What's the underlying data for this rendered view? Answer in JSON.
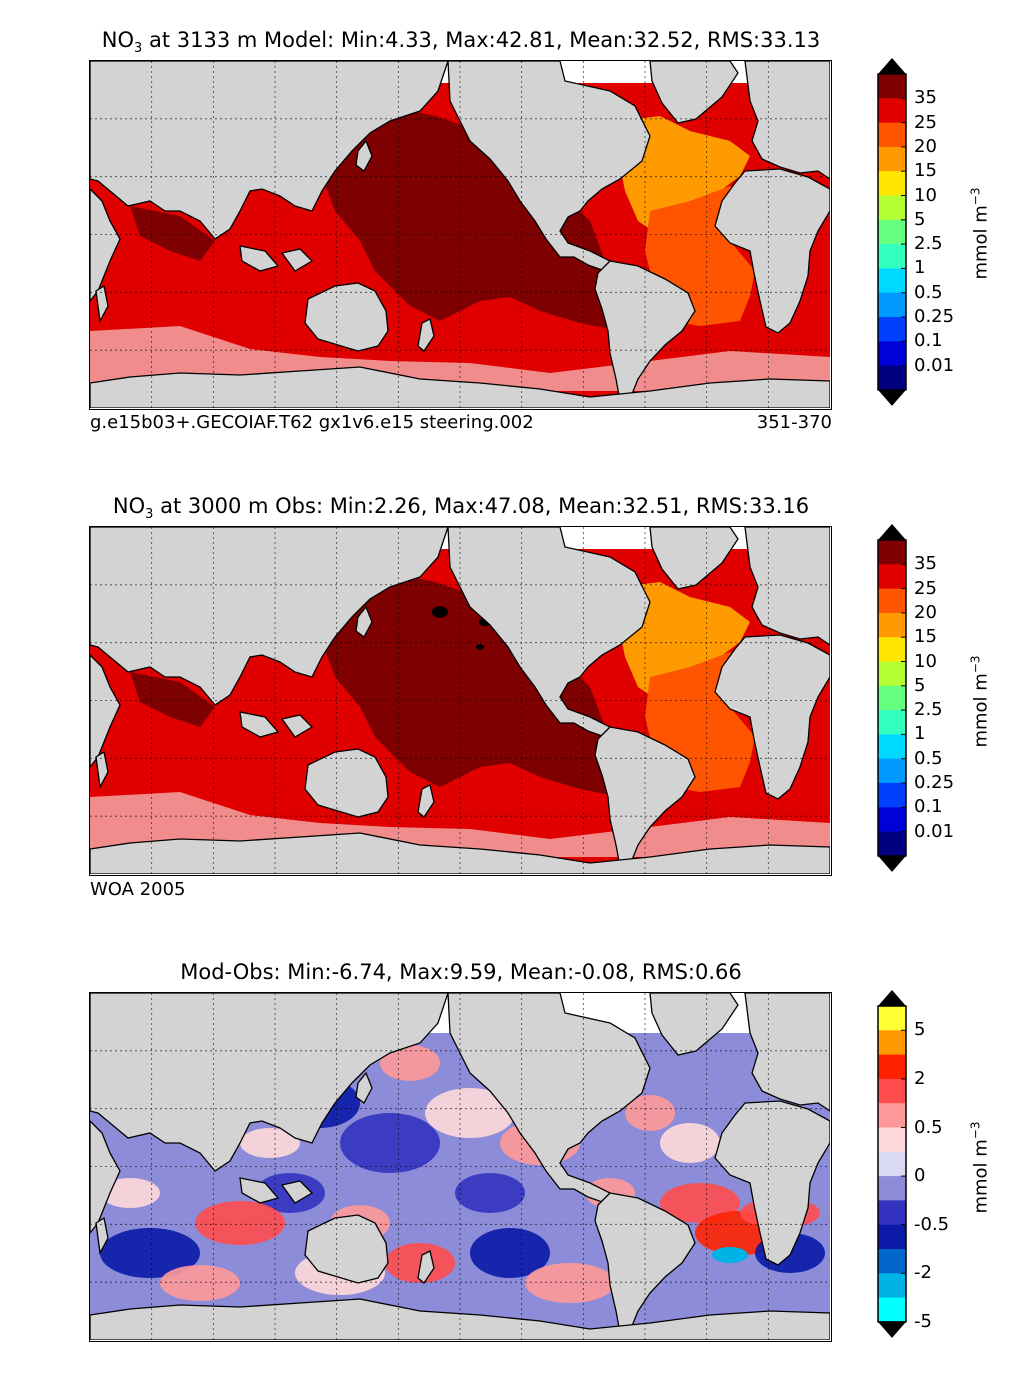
{
  "panels": [
    {
      "title_prefix": "NO",
      "title_sub": "3",
      "title_rest": " at 3133 m Model: Min:4.33, Max:42.81, Mean:32.52, RMS:33.13",
      "caption_left": "g.e15b03+.GECOIAF.T62 gx1v6.e15 steering.002",
      "caption_right": "351-370",
      "unit_base": "mmol m",
      "unit_sup": "−3",
      "colorbar": {
        "labels": [
          "35",
          "25",
          "20",
          "15",
          "10",
          "5",
          "2.5",
          "1",
          "0.5",
          "0.25",
          "0.1",
          "0.01"
        ],
        "colors": [
          "#7f0000",
          "#e00000",
          "#ff5500",
          "#ff9a00",
          "#ffe600",
          "#b3ff33",
          "#66ff80",
          "#33ffbf",
          "#00d9ff",
          "#0099ff",
          "#0040ff",
          "#0000d9",
          "#000080"
        ],
        "over_color": "#000000",
        "under_color": "#000000"
      }
    },
    {
      "title_prefix": "NO",
      "title_sub": "3",
      "title_rest": " at 3000 m Obs: Min:2.26, Max:47.08, Mean:32.51, RMS:33.16",
      "caption_left": "WOA 2005",
      "caption_right": "",
      "unit_base": "mmol m",
      "unit_sup": "−3",
      "colorbar": {
        "labels": [
          "35",
          "25",
          "20",
          "15",
          "10",
          "5",
          "2.5",
          "1",
          "0.5",
          "0.25",
          "0.1",
          "0.01"
        ],
        "colors": [
          "#7f0000",
          "#e00000",
          "#ff5500",
          "#ff9a00",
          "#ffe600",
          "#b3ff33",
          "#66ff80",
          "#33ffbf",
          "#00d9ff",
          "#0099ff",
          "#0040ff",
          "#0000d9",
          "#000080"
        ],
        "over_color": "#000000",
        "under_color": "#000000"
      }
    },
    {
      "title_prefix": "",
      "title_sub": "",
      "title_rest": "Mod-Obs: Min:-6.74, Max:9.59, Mean:-0.08, RMS:0.66",
      "caption_left": "",
      "caption_right": "",
      "unit_base": "mmol m",
      "unit_sup": "−3",
      "colorbar": {
        "labels": [
          "5",
          "2",
          "0.5",
          "0",
          "-0.5",
          "-2",
          "-5"
        ],
        "colors": [
          "#ffff33",
          "#ff9900",
          "#ff2200",
          "#ff4d4d",
          "#ff9999",
          "#ffd9d9",
          "#d9d9f2",
          "#8c8cd9",
          "#3333bf",
          "#0a1aa6",
          "#0066cc",
          "#00b3e6",
          "#00ffff"
        ],
        "over_color": "#000000",
        "under_color": "#000000"
      }
    }
  ],
  "colors": {
    "land": "#d3d3d3",
    "missing": "#ffffff",
    "coast": "#000000"
  }
}
